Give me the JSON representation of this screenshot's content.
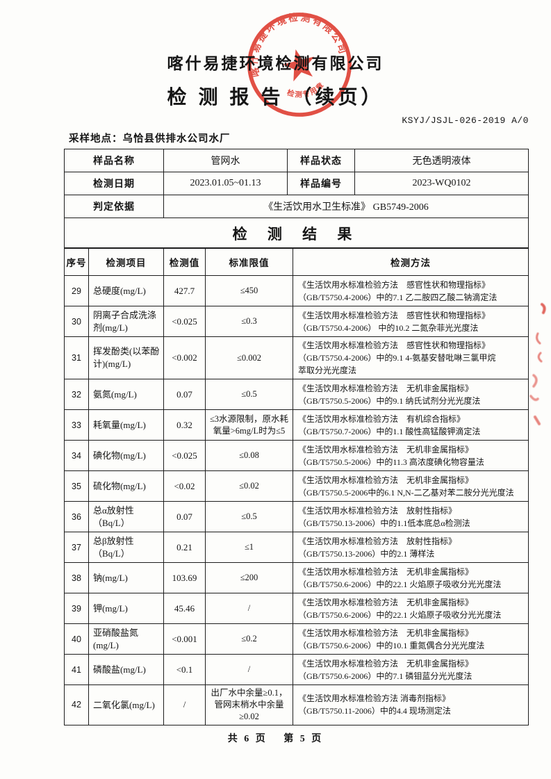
{
  "header": {
    "company": "喀什易捷环境检测有限公司",
    "title": "检 测 报 告 （续页）",
    "doc_no": "KSYJ/JSJL-026-2019  A/0",
    "sampling_line": "采样地点：乌恰县供排水公司水厂"
  },
  "stamp": {
    "color": "#e0372c",
    "ring_text": "喀什易捷环境检测有限公司",
    "bottom_text": "检测专用章"
  },
  "info": {
    "row1": {
      "label1": "样品名称",
      "value1": "管网水",
      "label2": "样品状态",
      "value2": "无色透明液体"
    },
    "row2": {
      "label1": "检测日期",
      "value1": "2023.01.05~01.13",
      "label2": "样品编号",
      "value2": "2023-WQ0102"
    },
    "row3": {
      "label1": "判定依据",
      "value1": "《生活饮用水卫生标准》 GB5749-2006"
    },
    "section_title": "检 测 结 果"
  },
  "results": {
    "headers": [
      "序号",
      "检测项目",
      "检测值",
      "标准限值",
      "检测方法"
    ],
    "rows": [
      {
        "no": "29",
        "item": "总硬度(mg/L)",
        "value": "427.7",
        "limit": "≤450",
        "method": [
          "《生活饮用水标准检验方法　感官性状和物理指标》",
          "（GB/T5750.4-2006）中的7.1 乙二胺四乙酸二钠滴定法"
        ]
      },
      {
        "no": "30",
        "item": "阴离子合成洗涤剂(mg/L)",
        "value": "<0.025",
        "limit": "≤0.3",
        "method": [
          "《生活饮用水标准检验方法　感官性状和物理指标》",
          "（GB/T5750.4-2006） 中的10.2 二氮杂菲光光度法"
        ]
      },
      {
        "no": "31",
        "item": "挥发酚类(以苯酚计)(mg/L)",
        "value": "<0.002",
        "limit": "≤0.002",
        "method": [
          "《生活饮用水标准检验方法　感官性状和物理指标》",
          "（GB/T5750.4-2006）中的9.1 4-氨基安替吡啉三氯甲烷",
          "萃取分光光度法"
        ]
      },
      {
        "no": "32",
        "item": "氨氮(mg/L)",
        "value": "0.07",
        "limit": "≤0.5",
        "method": [
          "《生活饮用水标准检验方法　无机非金属指标》",
          "（GB/T5750.5-2006）中的9.1 纳氏试剂分光光度法"
        ]
      },
      {
        "no": "33",
        "item": "耗氧量(mg/L)",
        "value": "0.32",
        "limit": "≤3水源限制，原水耗氧量>6mg/L时为≤5",
        "method": [
          "《生活饮用水标准检验方法　有机综合指标》",
          "（GB/T5750.7-2006）中的1.1 酸性高锰酸钾滴定法"
        ]
      },
      {
        "no": "34",
        "item": "碘化物(mg/L)",
        "value": "<0.025",
        "limit": "≤0.08",
        "method": [
          "《生活饮用水标准检验方法　无机非金属指标》",
          "（GB/T5750.5-2006）中的11.3 高浓度碘化物容量法"
        ]
      },
      {
        "no": "35",
        "item": "硫化物(mg/L)",
        "value": "<0.02",
        "limit": "≤0.02",
        "method": [
          "《生活饮用水标准检验方法　无机非金属指标》",
          "（GB/T5750.5-2006中的6.1 N,N-二乙基对苯二胺分光光度法"
        ]
      },
      {
        "no": "36",
        "item": "总α放射性（Bq/L）",
        "value": "0.07",
        "limit": "≤0.5",
        "method": [
          "《生活饮用水标准检验方法　放射性指标》",
          "（GB/T5750.13-2006）中的1.1低本底总α检测法"
        ]
      },
      {
        "no": "37",
        "item": "总β放射性（Bq/L）",
        "value": "0.21",
        "limit": "≤1",
        "method": [
          "《生活饮用水标准检验方法　放射性指标》",
          "（GB/T5750.13-2006）中的2.1 薄样法"
        ]
      },
      {
        "no": "38",
        "item": "钠(mg/L)",
        "value": "103.69",
        "limit": "≤200",
        "method": [
          "《生活饮用水标准检验方法　无机非金属指标》",
          "（GB/T5750.6-2006）中的22.1 火焰原子吸收分光光度法"
        ]
      },
      {
        "no": "39",
        "item": "钾(mg/L)",
        "value": "45.46",
        "limit": "/",
        "method": [
          "《生活饮用水标准检验方法　无机非金属指标》",
          "（GB/T5750.6-2006）中的22.1 火焰原子吸收分光光度法"
        ]
      },
      {
        "no": "40",
        "item": "亚硝酸盐氮(mg/L)",
        "value": "<0.001",
        "limit": "≤0.2",
        "method": [
          "《生活饮用水标准检验方法　无机非金属指标》",
          "（GB/T5750.6-2006）中的10.1 重氮偶合分光光度法"
        ]
      },
      {
        "no": "41",
        "item": "磷酸盐(mg/L)",
        "value": "<0.1",
        "limit": "/",
        "method": [
          "《生活饮用水标准检验方法　无机非金属指标》",
          "（GB/T5750.6-2006）中的7.1 磷钼蓝分光光度法"
        ]
      },
      {
        "no": "42",
        "item": "二氧化氯(mg/L)",
        "value": "/",
        "limit": "出厂水中余量≥0.1，管网末梢水中余量≥0.02",
        "method": [
          "《生活饮用水标准检验方法 消毒剂指标》",
          "（GB/T5750.11-2006）中的4.4 现场测定法"
        ]
      }
    ]
  },
  "footer": {
    "text": "共 6 页　 第 5 页"
  }
}
